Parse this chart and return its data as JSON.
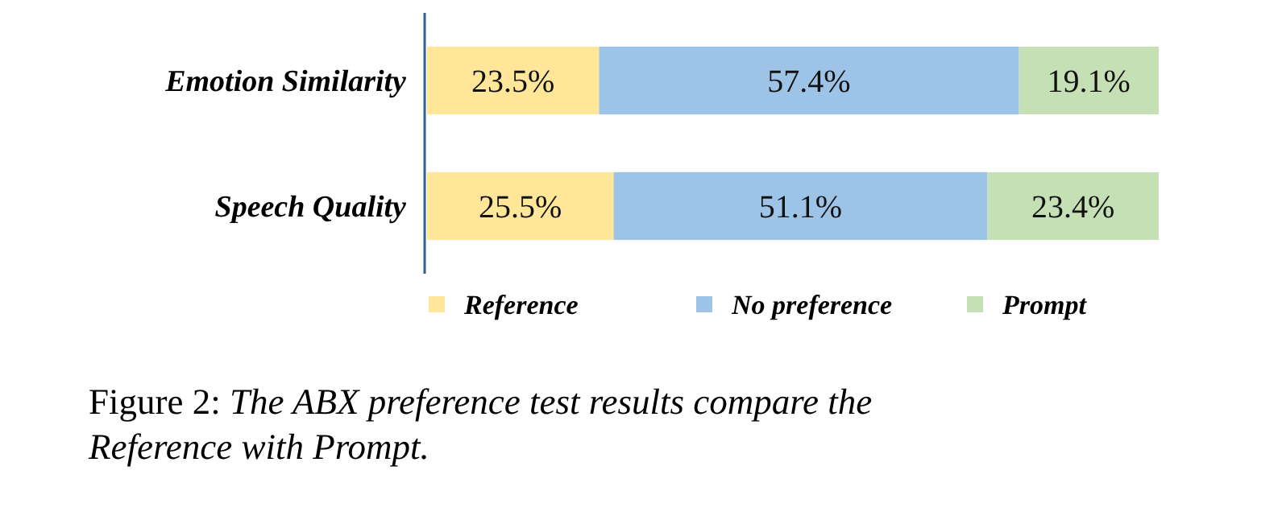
{
  "chart_data": {
    "type": "bar",
    "orientation": "horizontal",
    "stacked": true,
    "categories": [
      "Emotion Similarity",
      "Speech Quality"
    ],
    "series": [
      {
        "name": "Reference",
        "color": "#ffe699",
        "values": [
          23.5,
          25.5
        ],
        "value_labels": [
          "23.5%",
          "25.5%"
        ]
      },
      {
        "name": "No preference",
        "color": "#9dc3e6",
        "values": [
          57.4,
          51.1
        ],
        "value_labels": [
          "57.4%",
          "51.1%"
        ]
      },
      {
        "name": "Prompt",
        "color": "#c5e0b4",
        "values": [
          19.1,
          23.4
        ],
        "value_labels": [
          "19.1%",
          "23.4%"
        ]
      }
    ],
    "legend": "bottom",
    "tick_labels": "y",
    "grid": false,
    "annotations": [
      "Figure 2: The ABX preference test results compare the Reference with Prompt."
    ]
  }
}
